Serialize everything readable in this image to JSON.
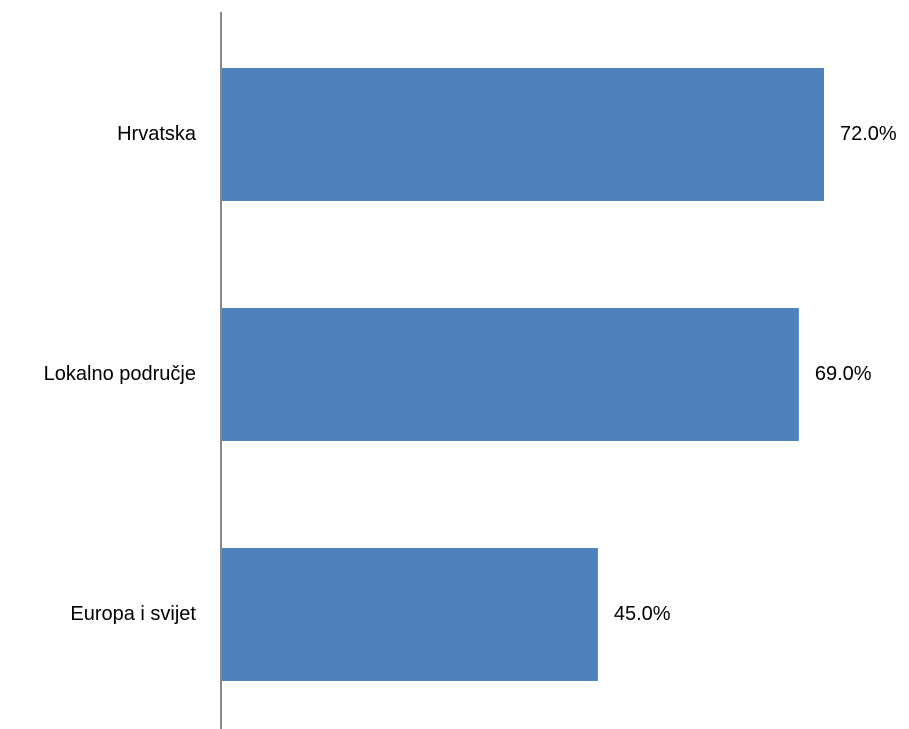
{
  "chart_data": {
    "type": "bar",
    "orientation": "horizontal",
    "categories": [
      "Hrvatska",
      "Lokalno područje",
      "Europa i svijet"
    ],
    "values": [
      72.0,
      69.0,
      45.0
    ],
    "value_labels": [
      "72.0%",
      "69.0%",
      "45.0%"
    ],
    "title": "",
    "xlabel": "",
    "ylabel": "",
    "xlim": [
      0,
      80
    ],
    "grid": false,
    "legend": "none",
    "bar_color": "#4F81BD",
    "axis_color": "#888888"
  }
}
